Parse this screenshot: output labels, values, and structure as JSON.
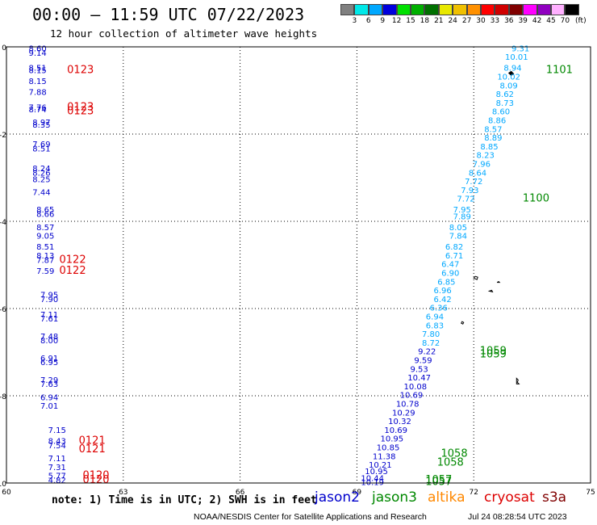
{
  "header": {
    "title": "00:00 – 11:59 UTC 07/22/2023",
    "subtitle": "12 hour collection of altimeter wave heights"
  },
  "footer": {
    "note": "note: 1) Time is in UTC; 2) SWH is in feet",
    "credit": "NOAA/NESDIS Center for Satellite Applications and Research",
    "stamp": "Jul 24 08:28:54 UTC 2023"
  },
  "satellites": [
    {
      "name": "jason2",
      "color": "#0000cc"
    },
    {
      "name": "jason3",
      "color": "#008800"
    },
    {
      "name": "altika",
      "color": "#ff8800"
    },
    {
      "name": "cryosat",
      "color": "#dd0000"
    },
    {
      "name": "s3a",
      "color": "#800000"
    }
  ],
  "colorbar": {
    "unit": "(ft)",
    "labels": [
      "3",
      "6",
      "9",
      "12",
      "15",
      "18",
      "21",
      "24",
      "27",
      "30",
      "33",
      "36",
      "39",
      "42",
      "45",
      "70"
    ],
    "colors": [
      "#808080",
      "#00e8e8",
      "#00a8ff",
      "#0000dd",
      "#00e000",
      "#00b000",
      "#007000",
      "#e8e800",
      "#f0c000",
      "#ff9000",
      "#ff0000",
      "#d00000",
      "#800000",
      "#ff00ff",
      "#9000c0",
      "#ffb0ff",
      "#000000"
    ]
  },
  "chart_data": {
    "type": "scatter",
    "xlim": [
      60,
      75
    ],
    "ylim": [
      -10,
      0
    ],
    "xticks": [
      "60",
      "63",
      "66",
      "69",
      "72",
      "75"
    ],
    "yticks": [
      "0",
      "-2",
      "-4",
      "-6",
      "-8",
      "-10"
    ],
    "grid": true,
    "series": [
      {
        "name": "cryosat",
        "color": "#0000cc",
        "points": [
          {
            "x": 60.8,
            "y": -0.1,
            "v": "8.60"
          },
          {
            "x": 60.8,
            "y": -0.2,
            "v": "9.14"
          },
          {
            "x": 60.8,
            "y": -0.55,
            "v": "8.51"
          },
          {
            "x": 60.8,
            "y": -0.6,
            "v": "8.15"
          },
          {
            "x": 60.8,
            "y": -0.85,
            "v": "8.15"
          },
          {
            "x": 60.8,
            "y": -1.1,
            "v": "7.88"
          },
          {
            "x": 60.8,
            "y": -1.45,
            "v": "7.76"
          },
          {
            "x": 60.8,
            "y": -1.5,
            "v": "8.74"
          },
          {
            "x": 60.9,
            "y": -1.8,
            "v": "8.97"
          },
          {
            "x": 60.9,
            "y": -1.85,
            "v": "8.35"
          },
          {
            "x": 60.9,
            "y": -2.3,
            "v": "7.69"
          },
          {
            "x": 60.9,
            "y": -2.4,
            "v": "8.51"
          },
          {
            "x": 60.9,
            "y": -2.85,
            "v": "8.24"
          },
          {
            "x": 60.9,
            "y": -2.95,
            "v": "8.26"
          },
          {
            "x": 60.9,
            "y": -3.1,
            "v": "8.25"
          },
          {
            "x": 60.9,
            "y": -3.4,
            "v": "7.44"
          },
          {
            "x": 61.0,
            "y": -3.8,
            "v": "8.65"
          },
          {
            "x": 61.0,
            "y": -3.9,
            "v": "8.66"
          },
          {
            "x": 61.0,
            "y": -4.2,
            "v": "8.57"
          },
          {
            "x": 61.0,
            "y": -4.4,
            "v": "9.05"
          },
          {
            "x": 61.0,
            "y": -4.65,
            "v": "8.51"
          },
          {
            "x": 61.0,
            "y": -4.85,
            "v": "8.13"
          },
          {
            "x": 61.0,
            "y": -4.95,
            "v": "7.87"
          },
          {
            "x": 61.0,
            "y": -5.2,
            "v": "7.59"
          },
          {
            "x": 61.1,
            "y": -5.75,
            "v": "7.95"
          },
          {
            "x": 61.1,
            "y": -5.85,
            "v": "7.90"
          },
          {
            "x": 61.1,
            "y": -6.2,
            "v": "7.11"
          },
          {
            "x": 61.1,
            "y": -6.3,
            "v": "7.61"
          },
          {
            "x": 61.1,
            "y": -6.7,
            "v": "7.48"
          },
          {
            "x": 61.1,
            "y": -6.8,
            "v": "8.00"
          },
          {
            "x": 61.1,
            "y": -7.2,
            "v": "6.91"
          },
          {
            "x": 61.1,
            "y": -7.3,
            "v": "6.95"
          },
          {
            "x": 61.1,
            "y": -7.7,
            "v": "7.29"
          },
          {
            "x": 61.1,
            "y": -7.8,
            "v": "7.63"
          },
          {
            "x": 61.1,
            "y": -8.1,
            "v": "6.94"
          },
          {
            "x": 61.1,
            "y": -8.3,
            "v": "7.01"
          },
          {
            "x": 61.3,
            "y": -8.85,
            "v": "7.15"
          },
          {
            "x": 61.3,
            "y": -9.1,
            "v": "8.43"
          },
          {
            "x": 61.3,
            "y": -9.2,
            "v": "7.54"
          },
          {
            "x": 61.3,
            "y": -9.5,
            "v": "7.11"
          },
          {
            "x": 61.3,
            "y": -9.7,
            "v": "7.31"
          },
          {
            "x": 61.3,
            "y": -9.9,
            "v": "5.77"
          },
          {
            "x": 61.3,
            "y": -10.0,
            "v": "4.82"
          }
        ]
      },
      {
        "name": "jason3",
        "color": "#00a8ff",
        "points": [
          {
            "x": 73.2,
            "y": -0.1,
            "v": "9.31"
          },
          {
            "x": 73.1,
            "y": -0.3,
            "v": "10.01"
          },
          {
            "x": 73.0,
            "y": -0.55,
            "v": "8.94"
          },
          {
            "x": 72.9,
            "y": -0.75,
            "v": "10.02"
          },
          {
            "x": 72.9,
            "y": -0.95,
            "v": "8.09"
          },
          {
            "x": 72.8,
            "y": -1.15,
            "v": "8.62"
          },
          {
            "x": 72.8,
            "y": -1.35,
            "v": "8.73"
          },
          {
            "x": 72.7,
            "y": -1.55,
            "v": "8.60"
          },
          {
            "x": 72.6,
            "y": -1.75,
            "v": "8.86"
          },
          {
            "x": 72.5,
            "y": -1.95,
            "v": "8.57"
          },
          {
            "x": 72.5,
            "y": -2.15,
            "v": "8.89"
          },
          {
            "x": 72.4,
            "y": -2.35,
            "v": "8.85"
          },
          {
            "x": 72.3,
            "y": -2.55,
            "v": "8.23"
          },
          {
            "x": 72.2,
            "y": -2.75,
            "v": "7.96"
          },
          {
            "x": 72.1,
            "y": -2.95,
            "v": "8.64"
          },
          {
            "x": 72.0,
            "y": -3.15,
            "v": "7.72"
          },
          {
            "x": 71.9,
            "y": -3.35,
            "v": "7.93"
          },
          {
            "x": 71.8,
            "y": -3.55,
            "v": "7.72"
          },
          {
            "x": 71.7,
            "y": -3.8,
            "v": "7.95"
          },
          {
            "x": 71.7,
            "y": -3.95,
            "v": "7.89"
          },
          {
            "x": 71.6,
            "y": -4.2,
            "v": "8.05"
          },
          {
            "x": 71.6,
            "y": -4.4,
            "v": "7.84"
          },
          {
            "x": 71.5,
            "y": -4.65,
            "v": "6.82"
          },
          {
            "x": 71.5,
            "y": -4.85,
            "v": "6.71"
          },
          {
            "x": 71.4,
            "y": -5.05,
            "v": "6.47"
          },
          {
            "x": 71.4,
            "y": -5.25,
            "v": "6.90"
          },
          {
            "x": 71.3,
            "y": -5.45,
            "v": "6.85"
          },
          {
            "x": 71.2,
            "y": -5.65,
            "v": "6.96"
          },
          {
            "x": 71.2,
            "y": -5.85,
            "v": "6.42"
          },
          {
            "x": 71.1,
            "y": -6.05,
            "v": "6.36"
          },
          {
            "x": 71.0,
            "y": -6.25,
            "v": "6.94"
          },
          {
            "x": 71.0,
            "y": -6.45,
            "v": "6.83"
          },
          {
            "x": 70.9,
            "y": -6.65,
            "v": "7.80"
          },
          {
            "x": 70.9,
            "y": -6.85,
            "v": "8.72"
          }
        ]
      },
      {
        "name": "jason2",
        "color": "#0000cc",
        "points": [
          {
            "x": 70.8,
            "y": -7.05,
            "v": "9.22"
          },
          {
            "x": 70.7,
            "y": -7.25,
            "v": "9.59"
          },
          {
            "x": 70.6,
            "y": -7.45,
            "v": "9.53"
          },
          {
            "x": 70.6,
            "y": -7.65,
            "v": "10.47"
          },
          {
            "x": 70.5,
            "y": -7.85,
            "v": "10.08"
          },
          {
            "x": 70.4,
            "y": -8.05,
            "v": "10.69"
          },
          {
            "x": 70.3,
            "y": -8.25,
            "v": "10.78"
          },
          {
            "x": 70.2,
            "y": -8.45,
            "v": "10.29"
          },
          {
            "x": 70.1,
            "y": -8.65,
            "v": "10.32"
          },
          {
            "x": 70.0,
            "y": -8.85,
            "v": "10.69"
          },
          {
            "x": 69.9,
            "y": -9.05,
            "v": "10.95"
          },
          {
            "x": 69.8,
            "y": -9.25,
            "v": "10.85"
          },
          {
            "x": 69.7,
            "y": -9.45,
            "v": "11.38"
          },
          {
            "x": 69.6,
            "y": -9.65,
            "v": "10.21"
          },
          {
            "x": 69.5,
            "y": -9.8,
            "v": "10.95"
          },
          {
            "x": 69.4,
            "y": -9.95,
            "v": "10.44"
          },
          {
            "x": 69.4,
            "y": -10.05,
            "v": "10.19"
          }
        ]
      }
    ],
    "time_labels": [
      {
        "x": 61.9,
        "y": -0.6,
        "v": "0123",
        "color": "#dd0000"
      },
      {
        "x": 61.9,
        "y": -1.45,
        "v": "0123",
        "color": "#dd0000"
      },
      {
        "x": 61.9,
        "y": -1.55,
        "v": "0123",
        "color": "#dd0000"
      },
      {
        "x": 61.7,
        "y": -4.95,
        "v": "0122",
        "color": "#dd0000"
      },
      {
        "x": 61.7,
        "y": -5.2,
        "v": "0122",
        "color": "#dd0000"
      },
      {
        "x": 62.2,
        "y": -9.1,
        "v": "0121",
        "color": "#dd0000"
      },
      {
        "x": 62.2,
        "y": -9.3,
        "v": "0121",
        "color": "#dd0000"
      },
      {
        "x": 62.3,
        "y": -9.9,
        "v": "0120",
        "color": "#dd0000"
      },
      {
        "x": 62.3,
        "y": -10.0,
        "v": "0120",
        "color": "#dd0000"
      },
      {
        "x": 74.2,
        "y": -0.6,
        "v": "1101",
        "color": "#008800"
      },
      {
        "x": 73.6,
        "y": -3.55,
        "v": "1100",
        "color": "#008800"
      },
      {
        "x": 72.5,
        "y": -7.05,
        "v": "1059",
        "color": "#008800"
      },
      {
        "x": 72.5,
        "y": -7.12,
        "v": "1059",
        "color": "#008800"
      },
      {
        "x": 71.5,
        "y": -9.4,
        "v": "1058",
        "color": "#008800"
      },
      {
        "x": 71.4,
        "y": -9.6,
        "v": "1058",
        "color": "#008800"
      },
      {
        "x": 71.1,
        "y": -10.0,
        "v": "1057",
        "color": "#008800"
      },
      {
        "x": 71.1,
        "y": -10.05,
        "v": "1057",
        "color": "#008800"
      }
    ]
  }
}
